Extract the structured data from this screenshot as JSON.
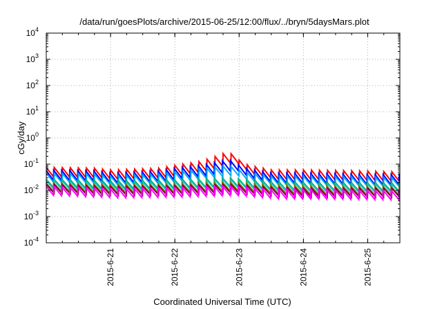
{
  "chart_data": {
    "type": "line",
    "title": "/data/run/goesPlots/archive/2015-06-25/12:00/flux/../bryn/5daysMars.plot",
    "xlabel": "Coordinated Universal Time (UTC)",
    "ylabel": "cGy/day",
    "y_scale": "log",
    "grid": "dotted",
    "xlim": [
      "2015-06-20T00:00",
      "2015-06-25T12:00"
    ],
    "ylim": [
      0.0001,
      10000
    ],
    "x_ticks": [
      "2015-6-21",
      "2015-6-22",
      "2015-6-23",
      "2015-6-24",
      "2015-6-25"
    ],
    "y_ticks": [
      {
        "base": "10",
        "exp": "-4"
      },
      {
        "base": "10",
        "exp": "-3"
      },
      {
        "base": "10",
        "exp": "-2"
      },
      {
        "base": "10",
        "exp": "-1"
      },
      {
        "base": "10",
        "exp": "0"
      },
      {
        "base": "10",
        "exp": "1"
      },
      {
        "base": "10",
        "exp": "2"
      },
      {
        "base": "10",
        "exp": "3"
      },
      {
        "base": "10",
        "exp": "4"
      }
    ],
    "sawtooth_period_hours": 3,
    "series": [
      {
        "color": "#ff0000",
        "peak_envelope": [
          [
            "2015-06-20T00:00",
            0.075
          ],
          [
            "2015-06-20T18:00",
            0.07
          ],
          [
            "2015-06-21T00:00",
            0.06
          ],
          [
            "2015-06-21T18:00",
            0.07
          ],
          [
            "2015-06-22T00:00",
            0.09
          ],
          [
            "2015-06-22T10:00",
            0.13
          ],
          [
            "2015-06-22T20:00",
            0.3
          ],
          [
            "2015-06-23T02:00",
            0.1
          ],
          [
            "2015-06-23T12:00",
            0.06
          ],
          [
            "2015-06-24T00:00",
            0.06
          ],
          [
            "2015-06-25T00:00",
            0.055
          ],
          [
            "2015-06-25T12:00",
            0.05
          ]
        ],
        "trough_ratio": 0.4
      },
      {
        "color": "#0000ff",
        "peak_envelope": [
          [
            "2015-06-20T00:00",
            0.06
          ],
          [
            "2015-06-20T18:00",
            0.055
          ],
          [
            "2015-06-21T00:00",
            0.045
          ],
          [
            "2015-06-21T18:00",
            0.055
          ],
          [
            "2015-06-22T00:00",
            0.07
          ],
          [
            "2015-06-22T10:00",
            0.09
          ],
          [
            "2015-06-22T20:00",
            0.15
          ],
          [
            "2015-06-23T02:00",
            0.07
          ],
          [
            "2015-06-23T12:00",
            0.045
          ],
          [
            "2015-06-24T00:00",
            0.045
          ],
          [
            "2015-06-25T00:00",
            0.04
          ],
          [
            "2015-06-25T12:00",
            0.04
          ]
        ],
        "trough_ratio": 0.4
      },
      {
        "color": "#00aaff",
        "peak_envelope": [
          [
            "2015-06-20T00:00",
            0.045
          ],
          [
            "2015-06-20T18:00",
            0.042
          ],
          [
            "2015-06-21T00:00",
            0.035
          ],
          [
            "2015-06-21T18:00",
            0.042
          ],
          [
            "2015-06-22T00:00",
            0.05
          ],
          [
            "2015-06-22T10:00",
            0.065
          ],
          [
            "2015-06-22T20:00",
            0.09
          ],
          [
            "2015-06-23T02:00",
            0.05
          ],
          [
            "2015-06-23T12:00",
            0.035
          ],
          [
            "2015-06-24T00:00",
            0.035
          ],
          [
            "2015-06-25T00:00",
            0.032
          ],
          [
            "2015-06-25T12:00",
            0.03
          ]
        ],
        "trough_ratio": 0.42
      },
      {
        "color": "#00a060",
        "peak_envelope": [
          [
            "2015-06-20T00:00",
            0.028
          ],
          [
            "2015-06-21T00:00",
            0.024
          ],
          [
            "2015-06-22T00:00",
            0.026
          ],
          [
            "2015-06-22T20:00",
            0.03
          ],
          [
            "2015-06-23T12:00",
            0.022
          ],
          [
            "2015-06-24T00:00",
            0.021
          ],
          [
            "2015-06-25T12:00",
            0.02
          ]
        ],
        "trough_ratio": 0.45
      },
      {
        "color": "#00c8c8",
        "peak_envelope": [
          [
            "2015-06-20T00:00",
            0.024
          ],
          [
            "2015-06-21T00:00",
            0.02
          ],
          [
            "2015-06-22T00:00",
            0.022
          ],
          [
            "2015-06-22T20:00",
            0.026
          ],
          [
            "2015-06-23T12:00",
            0.019
          ],
          [
            "2015-06-24T00:00",
            0.018
          ],
          [
            "2015-06-25T12:00",
            0.017
          ]
        ],
        "trough_ratio": 0.45
      },
      {
        "color": "#808000",
        "peak_envelope": [
          [
            "2015-06-20T00:00",
            0.02
          ],
          [
            "2015-06-21T00:00",
            0.017
          ],
          [
            "2015-06-22T00:00",
            0.018
          ],
          [
            "2015-06-22T20:00",
            0.021
          ],
          [
            "2015-06-23T12:00",
            0.016
          ],
          [
            "2015-06-24T00:00",
            0.015
          ],
          [
            "2015-06-25T12:00",
            0.014
          ]
        ],
        "trough_ratio": 0.45
      },
      {
        "color": "#800040",
        "peak_envelope": [
          [
            "2015-06-20T00:00",
            0.017
          ],
          [
            "2015-06-21T00:00",
            0.014
          ],
          [
            "2015-06-22T00:00",
            0.015
          ],
          [
            "2015-06-22T20:00",
            0.017
          ],
          [
            "2015-06-23T12:00",
            0.013
          ],
          [
            "2015-06-24T00:00",
            0.012
          ],
          [
            "2015-06-25T12:00",
            0.012
          ]
        ],
        "trough_ratio": 0.45
      },
      {
        "color": "#ff00ff",
        "peak_envelope": [
          [
            "2015-06-20T00:00",
            0.015
          ],
          [
            "2015-06-21T00:00",
            0.012
          ],
          [
            "2015-06-22T00:00",
            0.013
          ],
          [
            "2015-06-22T20:00",
            0.015
          ],
          [
            "2015-06-23T12:00",
            0.011
          ],
          [
            "2015-06-24T00:00",
            0.011
          ],
          [
            "2015-06-25T12:00",
            0.01
          ]
        ],
        "trough_ratio": 0.42
      }
    ]
  }
}
